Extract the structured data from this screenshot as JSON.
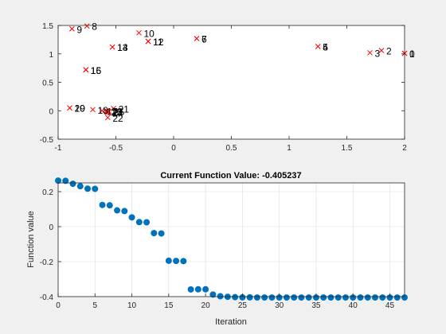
{
  "chart_data": [
    {
      "type": "scatter",
      "title": "",
      "xlabel": "",
      "ylabel": "",
      "xlim": [
        -1,
        2
      ],
      "ylim": [
        -0.5,
        1.5
      ],
      "xticks": [
        "-1",
        "-0.5",
        "0",
        "0.5",
        "1",
        "1.5",
        "2"
      ],
      "yticks": [
        "-0.5",
        "0",
        "0.5",
        "1",
        "1.5"
      ],
      "marker": "x",
      "marker_color": "#ff0000",
      "grid": false,
      "points": [
        {
          "x": 2.0,
          "y": 1.01,
          "label": "0"
        },
        {
          "x": 2.0,
          "y": 1.01,
          "label": "1"
        },
        {
          "x": 1.8,
          "y": 1.06,
          "label": "2"
        },
        {
          "x": 1.7,
          "y": 1.02,
          "label": "3"
        },
        {
          "x": 1.25,
          "y": 1.13,
          "label": "4"
        },
        {
          "x": 1.25,
          "y": 1.13,
          "label": "5"
        },
        {
          "x": 0.2,
          "y": 1.27,
          "label": "6"
        },
        {
          "x": 0.2,
          "y": 1.27,
          "label": "7"
        },
        {
          "x": -0.75,
          "y": 1.49,
          "label": "8"
        },
        {
          "x": -0.88,
          "y": 1.44,
          "label": "9"
        },
        {
          "x": -0.3,
          "y": 1.37,
          "label": "10"
        },
        {
          "x": -0.22,
          "y": 1.22,
          "label": "11"
        },
        {
          "x": -0.22,
          "y": 1.22,
          "label": "12"
        },
        {
          "x": -0.53,
          "y": 1.12,
          "label": "13"
        },
        {
          "x": -0.53,
          "y": 1.12,
          "label": "14"
        },
        {
          "x": -0.76,
          "y": 0.72,
          "label": "15"
        },
        {
          "x": -0.76,
          "y": 0.72,
          "label": "16"
        },
        {
          "x": -0.62,
          "y": 0.0,
          "label": "17"
        },
        {
          "x": -0.7,
          "y": 0.02,
          "label": "18"
        },
        {
          "x": -0.9,
          "y": 0.05,
          "label": "19"
        },
        {
          "x": -0.9,
          "y": 0.05,
          "label": "20"
        },
        {
          "x": -0.52,
          "y": 0.04,
          "label": "21"
        },
        {
          "x": -0.57,
          "y": -0.12,
          "label": "22"
        },
        {
          "x": -0.58,
          "y": -0.02,
          "label": "23"
        },
        {
          "x": -0.57,
          "y": -0.03,
          "label": "24"
        },
        {
          "x": -0.56,
          "y": -0.01,
          "label": "25"
        },
        {
          "x": -0.58,
          "y": 0.0,
          "label": "26"
        },
        {
          "x": -0.57,
          "y": -0.02,
          "label": "27"
        }
      ]
    },
    {
      "type": "scatter",
      "title": "Current Function Value: -0.405237",
      "xlabel": "Iteration",
      "ylabel": "Function value",
      "xlim": [
        0,
        47
      ],
      "ylim": [
        -0.4,
        0.25
      ],
      "xticks": [
        "0",
        "5",
        "10",
        "15",
        "20",
        "25",
        "30",
        "35",
        "40",
        "45"
      ],
      "yticks": [
        "-0.4",
        "-0.2",
        "0",
        "0.2"
      ],
      "marker": "o",
      "marker_color": "#0072bd",
      "grid": true,
      "x": [
        0,
        1,
        2,
        3,
        4,
        5,
        6,
        7,
        8,
        9,
        10,
        11,
        12,
        13,
        14,
        15,
        16,
        17,
        18,
        19,
        20,
        21,
        22,
        23,
        24,
        25,
        26,
        27,
        28,
        29,
        30,
        31,
        32,
        33,
        34,
        35,
        36,
        37,
        38,
        39,
        40,
        41,
        42,
        43,
        44,
        45,
        46,
        47
      ],
      "y": [
        0.263,
        0.262,
        0.245,
        0.231,
        0.217,
        0.216,
        0.124,
        0.122,
        0.093,
        0.089,
        0.053,
        0.026,
        0.025,
        -0.037,
        -0.039,
        -0.195,
        -0.196,
        -0.197,
        -0.359,
        -0.358,
        -0.358,
        -0.388,
        -0.398,
        -0.401,
        -0.403,
        -0.404,
        -0.404,
        -0.405,
        -0.405,
        -0.405,
        -0.405,
        -0.405,
        -0.405,
        -0.405,
        -0.405,
        -0.405,
        -0.405,
        -0.405,
        -0.405,
        -0.405,
        -0.405,
        -0.405,
        -0.405,
        -0.405,
        -0.405,
        -0.405,
        -0.405,
        -0.405
      ]
    }
  ]
}
